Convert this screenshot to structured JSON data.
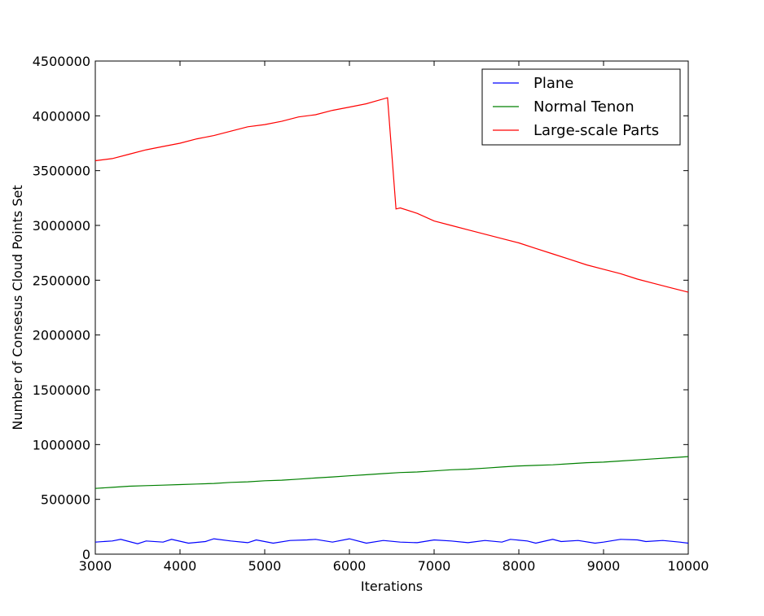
{
  "chart_data": {
    "type": "line",
    "title": "",
    "xlabel": "Iterations",
    "ylabel": "Number of Consesus Cloud Points Set",
    "xlim": [
      3000,
      10000
    ],
    "ylim": [
      0,
      4500000
    ],
    "x_ticks": [
      3000,
      4000,
      5000,
      6000,
      7000,
      8000,
      9000,
      10000
    ],
    "y_ticks": [
      0,
      500000,
      1000000,
      1500000,
      2000000,
      2500000,
      3000000,
      3500000,
      4000000,
      4500000
    ],
    "grid": false,
    "legend_position": "top-right",
    "series": [
      {
        "name": "Plane",
        "color": "#0000ff",
        "x": [
          3000,
          3200,
          3300,
          3500,
          3600,
          3800,
          3900,
          4100,
          4300,
          4400,
          4600,
          4800,
          4900,
          5100,
          5300,
          5500,
          5600,
          5800,
          6000,
          6200,
          6400,
          6600,
          6800,
          7000,
          7200,
          7400,
          7600,
          7800,
          7900,
          8100,
          8200,
          8400,
          8500,
          8700,
          8900,
          9000,
          9200,
          9400,
          9500,
          9700,
          9900,
          10000
        ],
        "y": [
          110000,
          120000,
          135000,
          95000,
          120000,
          110000,
          135000,
          100000,
          115000,
          140000,
          120000,
          105000,
          130000,
          100000,
          125000,
          130000,
          135000,
          110000,
          140000,
          100000,
          125000,
          110000,
          105000,
          130000,
          120000,
          105000,
          125000,
          110000,
          135000,
          120000,
          100000,
          135000,
          115000,
          125000,
          100000,
          110000,
          135000,
          130000,
          115000,
          125000,
          110000,
          100000
        ]
      },
      {
        "name": "Normal Tenon",
        "color": "#008000",
        "x": [
          3000,
          3200,
          3400,
          3600,
          3800,
          4000,
          4200,
          4400,
          4600,
          4800,
          5000,
          5200,
          5400,
          5600,
          5800,
          6000,
          6200,
          6400,
          6600,
          6800,
          7000,
          7200,
          7400,
          7600,
          7800,
          8000,
          8200,
          8400,
          8600,
          8800,
          9000,
          9200,
          9400,
          9600,
          9800,
          10000
        ],
        "y": [
          600000,
          610000,
          620000,
          625000,
          630000,
          635000,
          640000,
          645000,
          655000,
          660000,
          670000,
          675000,
          685000,
          695000,
          705000,
          715000,
          725000,
          735000,
          745000,
          750000,
          760000,
          770000,
          775000,
          785000,
          795000,
          805000,
          810000,
          815000,
          825000,
          835000,
          840000,
          850000,
          860000,
          870000,
          880000,
          890000
        ]
      },
      {
        "name": "Large-scale Parts",
        "color": "#ff0000",
        "x": [
          3000,
          3200,
          3400,
          3600,
          3800,
          4000,
          4200,
          4400,
          4600,
          4800,
          5000,
          5200,
          5400,
          5600,
          5800,
          6000,
          6200,
          6450,
          6550,
          6600,
          6800,
          7000,
          7200,
          7400,
          7600,
          7800,
          8000,
          8200,
          8400,
          8600,
          8800,
          9000,
          9200,
          9400,
          9600,
          9800,
          10000
        ],
        "y": [
          3590000,
          3610000,
          3650000,
          3690000,
          3720000,
          3750000,
          3790000,
          3820000,
          3860000,
          3900000,
          3920000,
          3950000,
          3990000,
          4010000,
          4050000,
          4080000,
          4110000,
          4165000,
          3150000,
          3160000,
          3110000,
          3040000,
          3000000,
          2960000,
          2920000,
          2880000,
          2840000,
          2790000,
          2740000,
          2690000,
          2640000,
          2600000,
          2560000,
          2510000,
          2470000,
          2430000,
          2390000
        ]
      }
    ]
  }
}
